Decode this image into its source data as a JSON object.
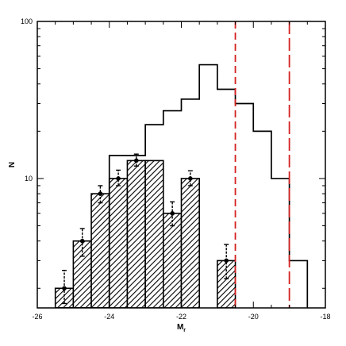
{
  "chart_data": {
    "type": "histogram",
    "xlabel": "M",
    "xlabel_subscript": "r",
    "ylabel": "N",
    "xlim": [
      -26,
      -18
    ],
    "ylim": [
      1.5,
      100
    ],
    "yscale": "log",
    "x_ticks": [
      -26,
      -24,
      -22,
      -20,
      -18
    ],
    "x_tick_labels": [
      "-26",
      "-24",
      "-22",
      "-20",
      "-18"
    ],
    "y_ticks": [
      10,
      100
    ],
    "y_tick_labels": [
      "10",
      "100"
    ],
    "bin_edges": [
      -25.5,
      -25.0,
      -24.5,
      -24.0,
      -23.5,
      -23.0,
      -22.5,
      -22.0,
      -21.5,
      -21.0,
      -20.5,
      -20.0,
      -19.5,
      -19.0,
      -18.5
    ],
    "series": [
      {
        "kind": "outline-step",
        "values": [
          1.5,
          1.5,
          1.5,
          14,
          14,
          22,
          27,
          32,
          53,
          37,
          30,
          20,
          10,
          3
        ]
      },
      {
        "kind": "hatched-bars-with-errors",
        "bin_edges": [
          -25.5,
          -25.0,
          -24.5,
          -24.0,
          -23.5,
          -23.0,
          -22.5,
          -22.0,
          -21.5,
          -21.0,
          -20.5
        ],
        "values": [
          2,
          4,
          8,
          10,
          13,
          13,
          6,
          10,
          1.5,
          3
        ],
        "error_low": [
          1.6,
          3.2,
          7.0,
          9.0,
          12.0,
          null,
          5.0,
          9.0,
          null,
          2.3
        ],
        "error_high": [
          2.6,
          4.8,
          9.0,
          11.3,
          14.3,
          null,
          7.1,
          11.2,
          null,
          3.8
        ],
        "points": [
          {
            "x": -25.25,
            "y": 2.0
          },
          {
            "x": -24.75,
            "y": 4.0
          },
          {
            "x": -24.25,
            "y": 8.0
          },
          {
            "x": -23.75,
            "y": 10.0
          },
          {
            "x": -23.25,
            "y": 13.0
          },
          {
            "x": -22.25,
            "y": 6.0
          },
          {
            "x": -21.75,
            "y": 10.0
          },
          {
            "x": -20.75,
            "y": 3.0
          }
        ]
      }
    ],
    "vertical_lines": [
      {
        "x": -20.5,
        "color": "#d42020",
        "style": "dashed"
      },
      {
        "x": -19.0,
        "color": "#d42020",
        "style": "long-dashed"
      }
    ]
  }
}
